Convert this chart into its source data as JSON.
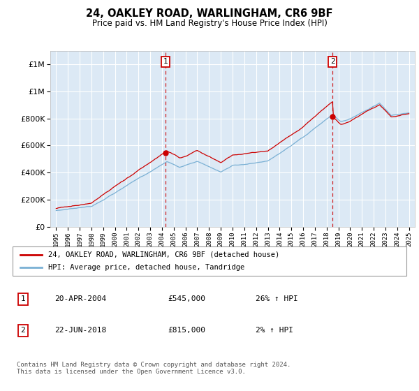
{
  "title": "24, OAKLEY ROAD, WARLINGHAM, CR6 9BF",
  "subtitle": "Price paid vs. HM Land Registry's House Price Index (HPI)",
  "background_color": "#dce9f5",
  "plot_bg_color": "#dce9f5",
  "legend_line1": "24, OAKLEY ROAD, WARLINGHAM, CR6 9BF (detached house)",
  "legend_line2": "HPI: Average price, detached house, Tandridge",
  "footer": "Contains HM Land Registry data © Crown copyright and database right 2024.\nThis data is licensed under the Open Government Licence v3.0.",
  "annotation1": {
    "num": "1",
    "date": "20-APR-2004",
    "price": "£545,000",
    "hpi": "26% ↑ HPI",
    "x_year": 2004.3
  },
  "annotation2": {
    "num": "2",
    "date": "22-JUN-2018",
    "price": "£815,000",
    "hpi": "2% ↑ HPI",
    "x_year": 2018.5
  },
  "sale1_value": 545000,
  "sale2_value": 815000,
  "ylim": [
    0,
    1300000
  ],
  "xlim_start": 1994.5,
  "xlim_end": 2025.5,
  "red_color": "#cc0000",
  "blue_color": "#7ab0d4",
  "grid_color": "#ffffff",
  "yticks": [
    0,
    200000,
    400000,
    600000,
    800000,
    1000000,
    1200000
  ]
}
